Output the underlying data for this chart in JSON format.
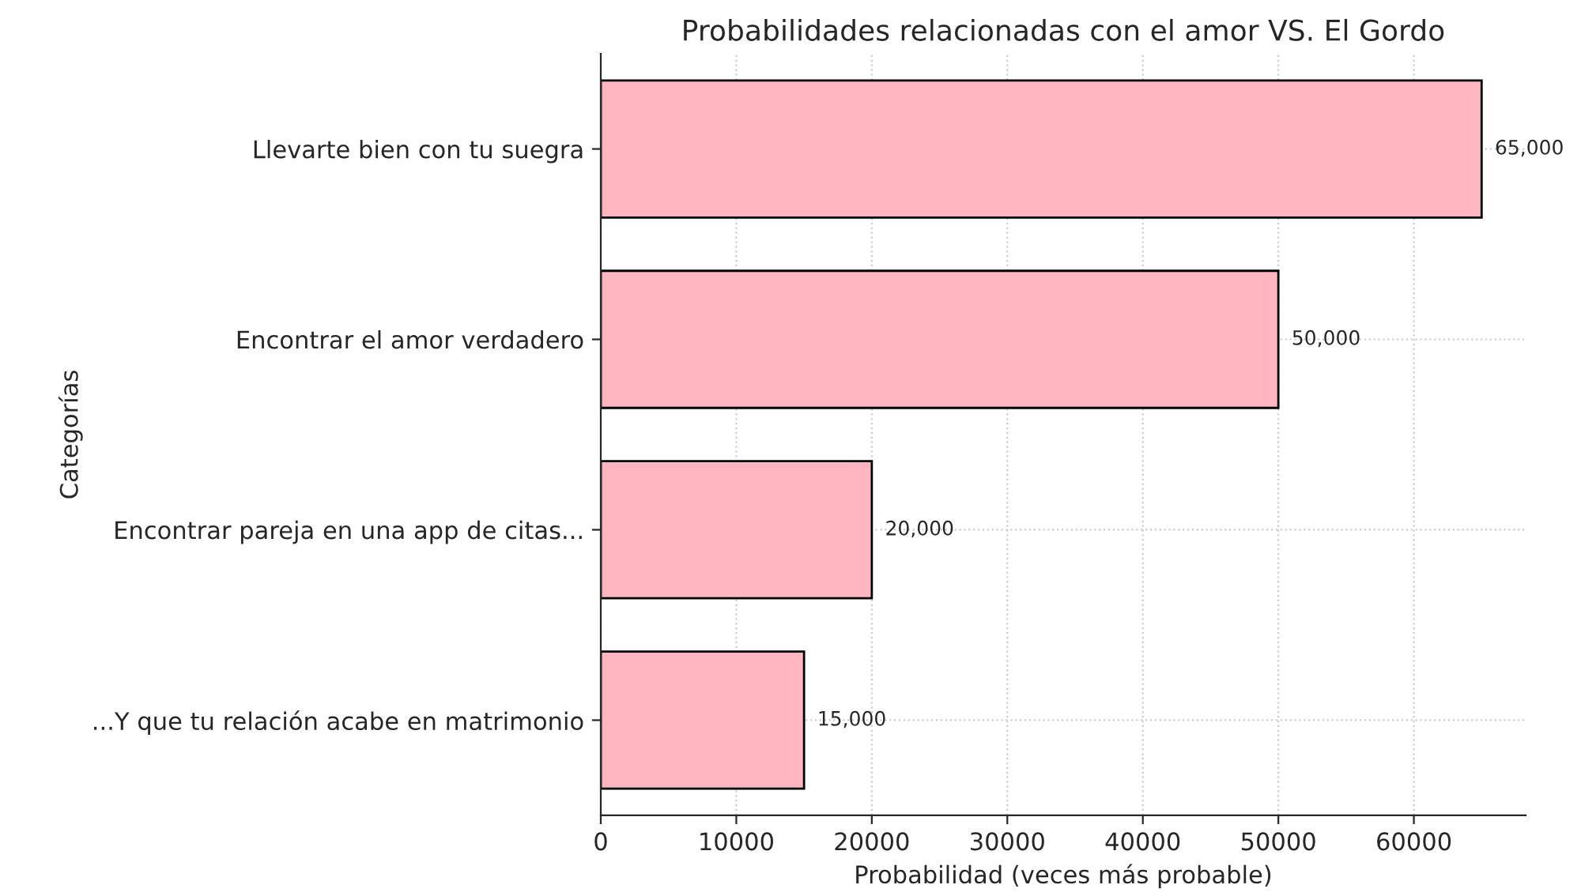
{
  "chart_data": {
    "type": "bar",
    "orientation": "horizontal",
    "title": "Probabilidades relacionadas con el amor VS. El Gordo",
    "xlabel": "Probabilidad (veces más probable)",
    "ylabel": "Categorías",
    "categories": [
      "Llevarte bien con tu suegra",
      "Encontrar el amor verdadero",
      "Encontrar pareja en una app de citas...",
      "...Y que tu relación acabe en matrimonio"
    ],
    "values": [
      65000,
      50000,
      20000,
      15000
    ],
    "value_labels": [
      "65,000",
      "50,000",
      "20,000",
      "15,000"
    ],
    "color": "#ffb6c1",
    "xlim": [
      0,
      68250
    ],
    "xticks": [
      0,
      10000,
      20000,
      30000,
      40000,
      50000,
      60000
    ],
    "grid": true
  }
}
